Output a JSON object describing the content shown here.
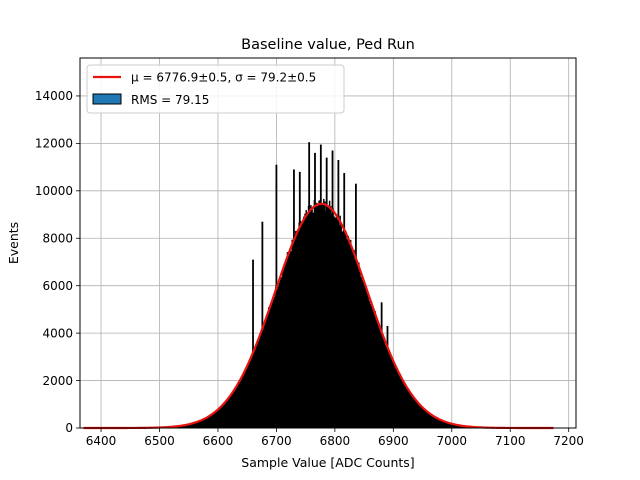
{
  "chart_data": {
    "type": "bar",
    "title": "Baseline value, Ped Run",
    "xlabel": "Sample Value [ADC Counts]",
    "ylabel": "Events",
    "xlim": [
      6364,
      6212.5
    ],
    "ylim": [
      0,
      15600
    ],
    "xticks": [
      6400,
      6500,
      6600,
      6700,
      6800,
      6900,
      7000,
      7100,
      7200
    ],
    "yticks": [
      0,
      2000,
      4000,
      6000,
      8000,
      10000,
      12000,
      14000
    ],
    "grid": true,
    "legend_position": "top-left",
    "series": [
      {
        "name": "RMS = 79.15",
        "kind": "histogram",
        "color": "#000000",
        "legend_patch_color": "#1f77b4",
        "x_range": [
          6400,
          7150
        ],
        "bin_width": 2,
        "rms": 79.15
      },
      {
        "name": "μ = 6776.9±0.5, σ = 79.2±0.5",
        "kind": "gaussian_fit",
        "color": "#e8120e",
        "mean": 6776.9,
        "mean_err": 0.5,
        "sigma": 79.2,
        "sigma_err": 0.5,
        "amplitude": 9450,
        "x_range": [
          6370,
          7175
        ]
      }
    ],
    "histogram_spikes": [
      {
        "x": 6700,
        "y": 11100
      },
      {
        "x": 6730,
        "y": 10900
      },
      {
        "x": 6740,
        "y": 10800
      },
      {
        "x": 6756,
        "y": 12050
      },
      {
        "x": 6766,
        "y": 11600
      },
      {
        "x": 6776,
        "y": 11950
      },
      {
        "x": 6786,
        "y": 11400
      },
      {
        "x": 6796,
        "y": 11700
      },
      {
        "x": 6806,
        "y": 11300
      },
      {
        "x": 6816,
        "y": 10750
      },
      {
        "x": 6836,
        "y": 10300
      },
      {
        "x": 6676,
        "y": 8700
      },
      {
        "x": 6660,
        "y": 7100
      },
      {
        "x": 6880,
        "y": 5300
      },
      {
        "x": 6890,
        "y": 4300
      }
    ]
  },
  "legend": {
    "fit_label": "μ = 6776.9±0.5, σ = 79.2±0.5",
    "hist_label": "RMS = 79.15"
  }
}
